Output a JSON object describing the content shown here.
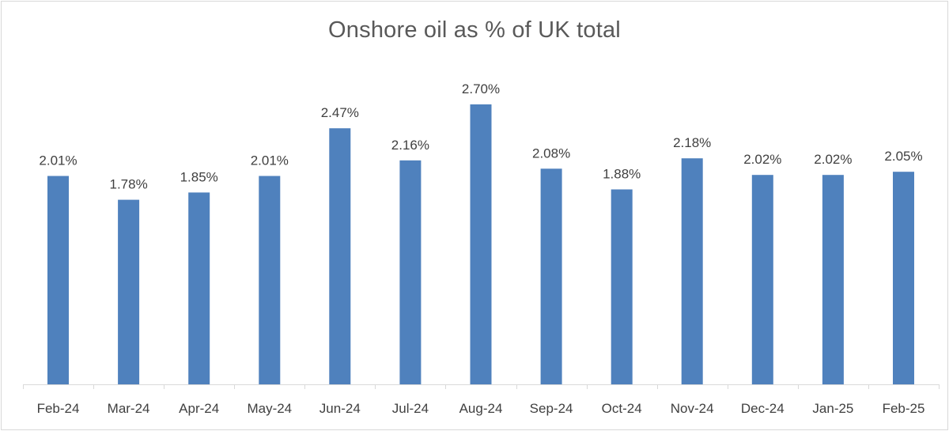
{
  "chart_data": {
    "type": "bar",
    "title": "Onshore oil as % of UK total",
    "xlabel": "",
    "ylabel": "",
    "categories": [
      "Feb-24",
      "Mar-24",
      "Apr-24",
      "May-24",
      "Jun-24",
      "Jul-24",
      "Aug-24",
      "Sep-24",
      "Oct-24",
      "Nov-24",
      "Dec-24",
      "Jan-25",
      "Feb-25"
    ],
    "values": [
      2.01,
      1.78,
      1.85,
      2.01,
      2.47,
      2.16,
      2.7,
      2.08,
      1.88,
      2.18,
      2.02,
      2.02,
      2.05
    ],
    "data_labels": [
      "2.01%",
      "1.78%",
      "1.85%",
      "2.01%",
      "2.47%",
      "2.16%",
      "2.70%",
      "2.08%",
      "1.88%",
      "2.18%",
      "2.02%",
      "2.02%",
      "2.05%"
    ],
    "ylim": [
      0,
      2.7
    ],
    "grid": false,
    "legend": "none",
    "bar_color": "#4f81bd"
  }
}
